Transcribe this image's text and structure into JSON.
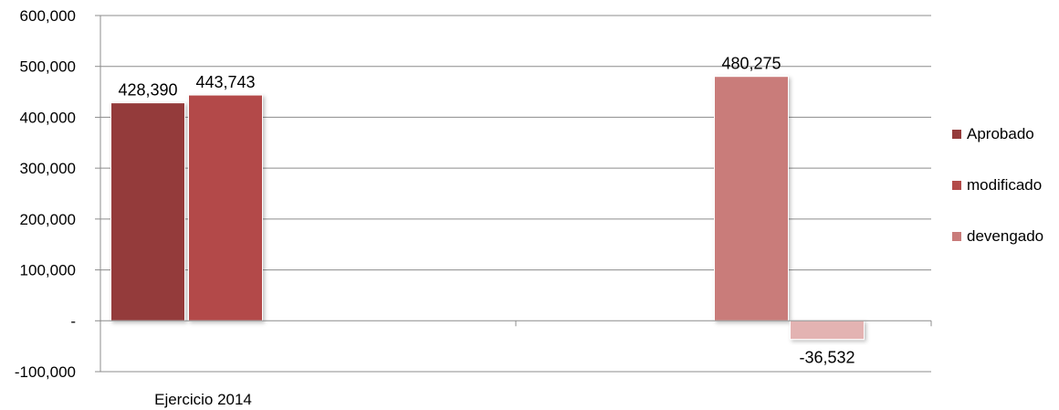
{
  "chart_data": {
    "type": "bar",
    "title": "",
    "xlabel": "",
    "ylabel": "",
    "ylim": [
      -100000,
      600000
    ],
    "yticks": [
      600000,
      500000,
      400000,
      300000,
      200000,
      100000,
      0,
      -100000
    ],
    "ytick_labels": [
      "600,000",
      "500,000",
      "400,000",
      "300,000",
      "200,000",
      "100,000",
      "-",
      "-100,000"
    ],
    "categories": [
      "Ejercicio 2014",
      ""
    ],
    "series": [
      {
        "name": "Aprobado",
        "values": [
          428390,
          null
        ],
        "labels": [
          "428,390",
          ""
        ]
      },
      {
        "name": "modificado",
        "values": [
          443743,
          null
        ],
        "labels": [
          "443,743",
          ""
        ]
      },
      {
        "name": "devengado",
        "values": [
          null,
          480275
        ],
        "labels": [
          "",
          "480,275"
        ]
      },
      {
        "name": "",
        "values": [
          null,
          -36532
        ],
        "labels": [
          "",
          "-36,532"
        ]
      }
    ],
    "colors": [
      "#943b3b",
      "#b34a48",
      "#c97b7a",
      "#e3b3b2"
    ],
    "grid": true,
    "legend_position": "right"
  }
}
